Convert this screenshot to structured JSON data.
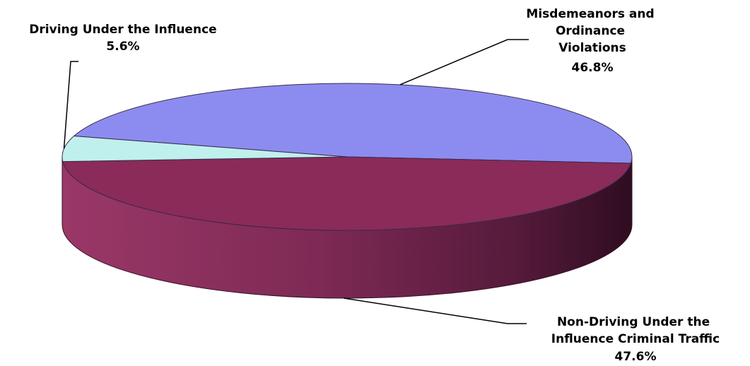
{
  "chart_data": {
    "type": "pie",
    "style": "3d",
    "title": "",
    "slices": [
      {
        "label_lines": [
          "Misdemeanors and",
          "Ordinance",
          "Violations"
        ],
        "value": 46.8,
        "value_label": "46.8%",
        "color": "#8c8cf0"
      },
      {
        "label_lines": [
          "Non-Driving Under the",
          "Influence Criminal Traffic"
        ],
        "value": 47.6,
        "value_label": "47.6%",
        "color": "#8a2b5a"
      },
      {
        "label_lines": [
          "Driving Under the Influence"
        ],
        "value": 5.6,
        "value_label": "5.6%",
        "color": "#bff0ee"
      }
    ]
  }
}
